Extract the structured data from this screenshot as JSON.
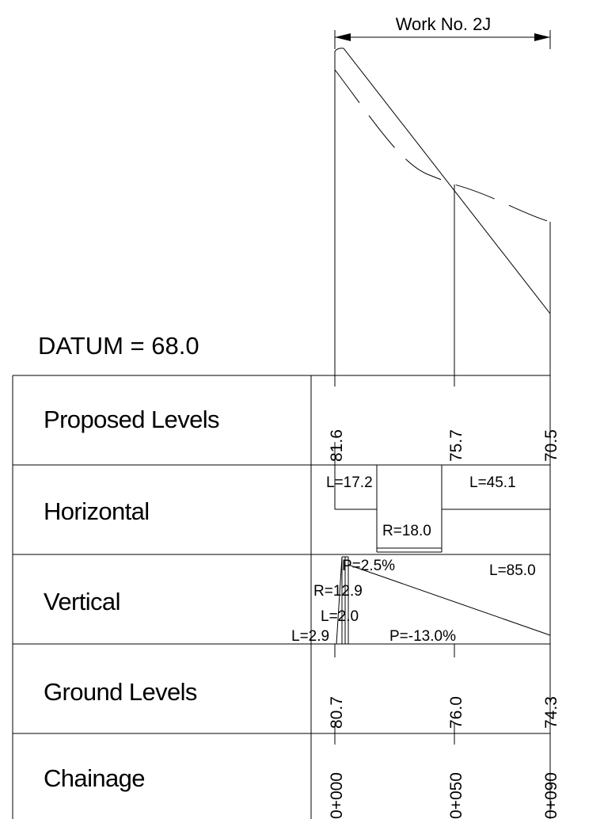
{
  "work_label": "Work No. 2J",
  "datum": "DATUM = 68.0",
  "rows": {
    "proposed": "Proposed Levels",
    "horizontal": "Horizontal",
    "vertical": "Vertical",
    "ground": "Ground Levels",
    "chainage": "Chainage"
  },
  "proposed_levels": [
    "81.6",
    "75.7",
    "70.5"
  ],
  "ground_levels": [
    "80.7",
    "76.0",
    "74.3"
  ],
  "chainages": [
    "0+000",
    "0+050",
    "0+090"
  ],
  "horizontal": {
    "length_1": "L=17.2",
    "radius": "R=18.0",
    "length_2": "L=45.1"
  },
  "vertical": {
    "grade_1": "P=2.5%",
    "radius": "R=12.9",
    "curve_length": "L=2.0",
    "length_start": "L=2.9",
    "grade_2": "P=-13.0%",
    "length_end": "L=85.0"
  }
}
